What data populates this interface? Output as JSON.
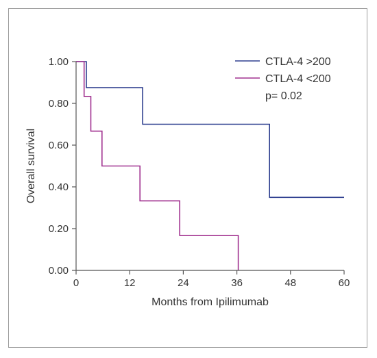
{
  "chart_data": {
    "type": "line",
    "step": true,
    "xlabel": "Months from Ipilimumab",
    "ylabel": "Overall survival",
    "xlim": [
      0,
      60
    ],
    "ylim": [
      0,
      1
    ],
    "x_ticks": [
      "0",
      "12",
      "24",
      "36",
      "48",
      "60"
    ],
    "y_ticks": [
      "0.00",
      "0.20",
      "0.40",
      "0.60",
      "0.80",
      "1.00"
    ],
    "grid": false,
    "legend_position": "top-right",
    "annotation": "p= 0.02",
    "series": [
      {
        "name": "CTLA-4 >200",
        "color": "#2e3f8f",
        "points": [
          [
            0,
            1.0
          ],
          [
            2.3,
            1.0
          ],
          [
            2.3,
            0.875
          ],
          [
            14.9,
            0.875
          ],
          [
            14.9,
            0.7
          ],
          [
            43.3,
            0.7
          ],
          [
            43.3,
            0.35
          ],
          [
            60,
            0.35
          ]
        ]
      },
      {
        "name": "CTLA-4 <200",
        "color": "#a0308f",
        "points": [
          [
            0,
            1.0
          ],
          [
            1.8,
            1.0
          ],
          [
            1.8,
            0.833
          ],
          [
            3.3,
            0.833
          ],
          [
            3.3,
            0.667
          ],
          [
            5.8,
            0.667
          ],
          [
            5.8,
            0.5
          ],
          [
            14.3,
            0.5
          ],
          [
            14.3,
            0.333
          ],
          [
            23.2,
            0.333
          ],
          [
            23.2,
            0.167
          ],
          [
            36.3,
            0.167
          ],
          [
            36.3,
            0.0
          ]
        ]
      }
    ]
  }
}
